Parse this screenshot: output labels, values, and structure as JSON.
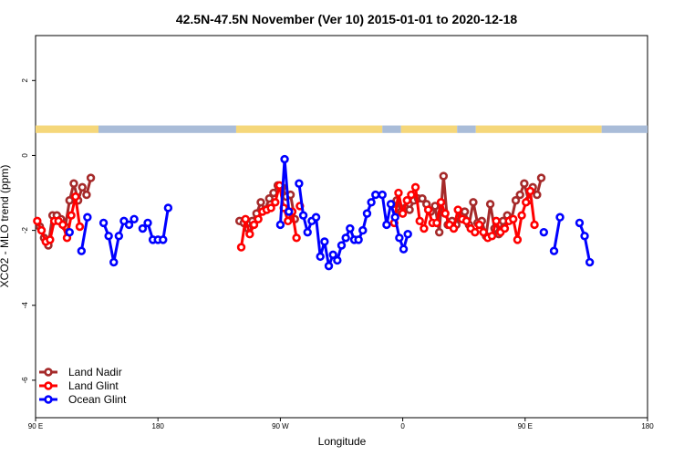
{
  "chart_data": {
    "type": "line",
    "title": "42.5N-47.5N November (Ver 10)   2015-01-01 to 2020-12-18",
    "xlabel": "Longitude",
    "ylabel": "XCO2 - MLO trend (ppm)",
    "xlim": [
      90,
      450
    ],
    "ylim": [
      -7.0,
      3.2
    ],
    "x_ticks": [
      {
        "value": 90,
        "label": "90 E"
      },
      {
        "value": 162,
        "label": "180"
      },
      {
        "value": 234,
        "label": "90 W"
      },
      {
        "value": 306,
        "label": "0"
      },
      {
        "value": 378,
        "label": "90 E"
      },
      {
        "value": 450,
        "label": "180"
      }
    ],
    "y_ticks": [
      {
        "value": 2,
        "label": "2"
      },
      {
        "value": 0,
        "label": "0"
      },
      {
        "value": -2,
        "label": "-2"
      },
      {
        "value": -4,
        "label": "-4"
      },
      {
        "value": -6,
        "label": "-6"
      }
    ],
    "grid": false,
    "legend_position": "bottom-left",
    "land_ocean_strip": {
      "y": 0.7,
      "land_color": "#f5d77a",
      "ocean_color": "#a9bcd8",
      "segments": [
        {
          "type": "land",
          "from": 90,
          "to": 127
        },
        {
          "type": "ocean",
          "from": 127,
          "to": 208
        },
        {
          "type": "land",
          "from": 208,
          "to": 294
        },
        {
          "type": "ocean",
          "from": 294,
          "to": 305
        },
        {
          "type": "land",
          "from": 305,
          "to": 338
        },
        {
          "type": "ocean",
          "from": 338,
          "to": 349
        },
        {
          "type": "land",
          "from": 349,
          "to": 423
        },
        {
          "type": "ocean",
          "from": 423,
          "to": 450
        }
      ]
    },
    "series": [
      {
        "name": "Land Nadir",
        "color": "#a52a2a",
        "segments": [
          [
            [
              92.5,
              -1.9
            ],
            [
              95,
              -2.2
            ],
            [
              97.5,
              -2.4
            ],
            [
              100,
              -1.6
            ],
            [
              102.5,
              -1.6
            ],
            [
              105,
              -1.7
            ],
            [
              107.5,
              -1.9
            ],
            [
              110,
              -1.2
            ],
            [
              112.5,
              -0.75
            ],
            [
              115,
              -1.2
            ],
            [
              117.5,
              -0.85
            ],
            [
              120,
              -1.05
            ],
            [
              122.5,
              -0.6
            ]
          ],
          [
            [
              210,
              -1.75
            ],
            [
              212.5,
              -1.8
            ],
            [
              215,
              -1.95
            ],
            [
              217.5,
              -1.75
            ],
            [
              220,
              -1.55
            ],
            [
              222.5,
              -1.25
            ],
            [
              225,
              -1.45
            ],
            [
              227.5,
              -1.15
            ],
            [
              230,
              -1.0
            ],
            [
              232.5,
              -0.8
            ],
            [
              235,
              -0.85
            ],
            [
              237.5,
              -1.1
            ],
            [
              240,
              -1.05
            ],
            [
              242.5,
              -1.7
            ]
          ],
          [
            [
              300,
              -1.3
            ],
            [
              302.5,
              -1.2
            ],
            [
              305,
              -1.5
            ],
            [
              307.5,
              -1.4
            ],
            [
              310,
              -1.45
            ],
            [
              312.5,
              -1.2
            ],
            [
              315,
              -1.15
            ],
            [
              317.5,
              -1.15
            ],
            [
              320,
              -1.3
            ],
            [
              322.5,
              -1.5
            ],
            [
              325,
              -1.35
            ],
            [
              327.5,
              -2.05
            ],
            [
              330,
              -0.55
            ],
            [
              332.5,
              -1.85
            ],
            [
              335,
              -1.75
            ],
            [
              337.5,
              -1.85
            ],
            [
              340,
              -1.55
            ],
            [
              342.5,
              -1.5
            ],
            [
              345,
              -1.85
            ],
            [
              347.5,
              -1.25
            ],
            [
              350,
              -1.8
            ],
            [
              352.5,
              -1.75
            ],
            [
              355,
              -2.15
            ],
            [
              357.5,
              -1.3
            ],
            [
              360,
              -1.95
            ],
            [
              362.5,
              -2.1
            ],
            [
              365,
              -1.75
            ],
            [
              367.5,
              -1.6
            ],
            [
              370,
              -1.7
            ],
            [
              372.5,
              -1.2
            ],
            [
              375,
              -1.05
            ],
            [
              377.5,
              -0.75
            ],
            [
              380,
              -1.2
            ],
            [
              382.5,
              -0.85
            ],
            [
              385,
              -1.05
            ],
            [
              387.5,
              -0.6
            ]
          ]
        ]
      },
      {
        "name": "Land Glint",
        "color": "#ff0000",
        "segments": [
          [
            [
              91,
              -1.75
            ],
            [
              93.5,
              -2.0
            ],
            [
              96,
              -2.3
            ],
            [
              98.5,
              -2.25
            ],
            [
              101,
              -1.75
            ],
            [
              103.5,
              -1.75
            ],
            [
              106,
              -1.85
            ],
            [
              108.5,
              -2.2
            ],
            [
              111,
              -1.6
            ],
            [
              113.5,
              -1.1
            ],
            [
              116,
              -1.9
            ]
          ],
          [
            [
              211,
              -2.45
            ],
            [
              213.5,
              -1.7
            ],
            [
              216,
              -2.1
            ],
            [
              218.5,
              -1.85
            ],
            [
              221,
              -1.7
            ],
            [
              223.5,
              -1.5
            ],
            [
              226,
              -1.45
            ],
            [
              228.5,
              -1.4
            ],
            [
              231,
              -1.25
            ],
            [
              233.5,
              -0.8
            ],
            [
              236,
              -1.4
            ],
            [
              238.5,
              -1.75
            ],
            [
              241,
              -1.5
            ],
            [
              243.5,
              -2.2
            ]
          ],
          [
            [
              245.5,
              -1.35
            ]
          ],
          [
            [
              301,
              -1.8
            ],
            [
              303.5,
              -1.0
            ],
            [
              306,
              -1.55
            ],
            [
              308.5,
              -1.2
            ],
            [
              311,
              -1.05
            ],
            [
              313.5,
              -0.85
            ],
            [
              316,
              -1.75
            ],
            [
              318.5,
              -1.95
            ],
            [
              321,
              -1.45
            ],
            [
              323.5,
              -1.8
            ],
            [
              326,
              -1.8
            ],
            [
              328.5,
              -1.25
            ],
            [
              331,
              -1.55
            ],
            [
              333.5,
              -1.85
            ],
            [
              336,
              -1.95
            ],
            [
              338.5,
              -1.45
            ],
            [
              341,
              -1.7
            ],
            [
              343.5,
              -1.75
            ],
            [
              346,
              -1.95
            ],
            [
              348.5,
              -2.05
            ],
            [
              351,
              -1.85
            ],
            [
              353.5,
              -2.05
            ],
            [
              356,
              -2.2
            ],
            [
              358.5,
              -2.15
            ],
            [
              361,
              -1.75
            ],
            [
              363.5,
              -2.05
            ],
            [
              366,
              -1.95
            ],
            [
              368.5,
              -1.75
            ],
            [
              371,
              -1.7
            ],
            [
              373.5,
              -2.25
            ],
            [
              376,
              -1.6
            ],
            [
              378.5,
              -1.25
            ],
            [
              381,
              -0.95
            ],
            [
              383.5,
              -1.85
            ]
          ]
        ]
      },
      {
        "name": "Ocean Glint",
        "color": "#0000ff",
        "segments": [
          [
            [
              110,
              -2.05
            ]
          ],
          [
            [
              117,
              -2.55
            ],
            [
              120.5,
              -1.65
            ]
          ],
          [
            [
              130,
              -1.8
            ],
            [
              133,
              -2.15
            ],
            [
              136,
              -2.85
            ],
            [
              139,
              -2.15
            ],
            [
              142,
              -1.75
            ],
            [
              145,
              -1.85
            ],
            [
              148,
              -1.7
            ]
          ],
          [
            [
              153,
              -1.95
            ],
            [
              156,
              -1.8
            ],
            [
              159,
              -2.25
            ],
            [
              162,
              -2.25
            ],
            [
              165,
              -2.25
            ],
            [
              168,
              -1.4
            ]
          ],
          [
            [
              234,
              -1.85
            ],
            [
              236.5,
              -0.1
            ],
            [
              239,
              -1.5
            ]
          ],
          [
            [
              245,
              -0.75
            ],
            [
              247.5,
              -1.6
            ],
            [
              250,
              -2.05
            ],
            [
              252.5,
              -1.75
            ],
            [
              255,
              -1.65
            ],
            [
              257.5,
              -2.7
            ],
            [
              260,
              -2.3
            ],
            [
              262.5,
              -2.95
            ],
            [
              265,
              -2.65
            ],
            [
              267.5,
              -2.8
            ],
            [
              270,
              -2.4
            ],
            [
              272.5,
              -2.2
            ],
            [
              275,
              -1.95
            ],
            [
              277.5,
              -2.25
            ],
            [
              280,
              -2.25
            ],
            [
              282.5,
              -2.0
            ],
            [
              285,
              -1.55
            ],
            [
              287.5,
              -1.25
            ],
            [
              290,
              -1.05
            ]
          ],
          [
            [
              294,
              -1.05
            ],
            [
              296.5,
              -1.85
            ],
            [
              299,
              -1.3
            ],
            [
              301.5,
              -1.65
            ],
            [
              304,
              -2.2
            ],
            [
              306.5,
              -2.5
            ],
            [
              309,
              -2.1
            ]
          ],
          [
            [
              389,
              -2.05
            ]
          ],
          [
            [
              395,
              -2.55
            ],
            [
              398.5,
              -1.65
            ]
          ],
          [
            [
              410,
              -1.8
            ],
            [
              413,
              -2.15
            ],
            [
              416,
              -2.85
            ]
          ]
        ]
      }
    ]
  }
}
